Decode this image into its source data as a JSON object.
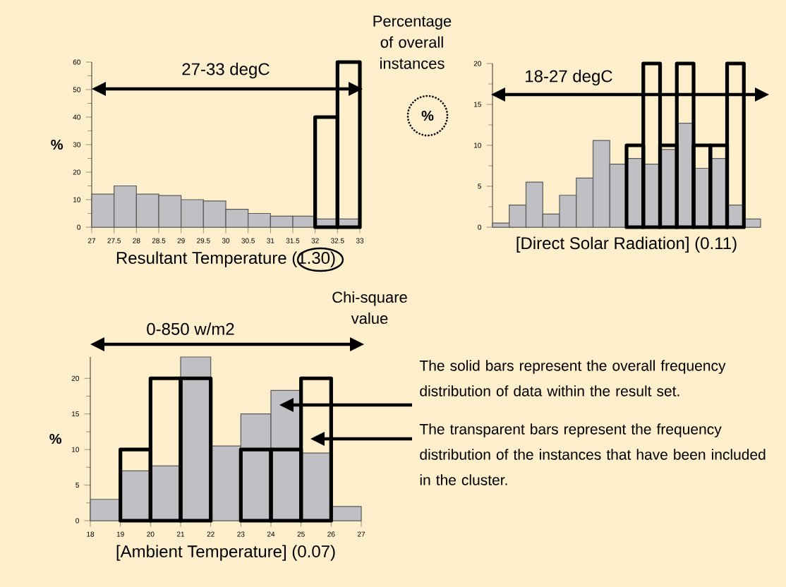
{
  "chart_data": [
    {
      "type": "histogram",
      "xlabel": "Resultant Temperature (1.30)",
      "ylabel": "%",
      "bins": [
        27,
        27.5,
        28,
        28.5,
        29,
        29.5,
        30,
        30.5,
        31,
        31.5,
        32,
        32.5,
        33
      ],
      "xlim": [
        27,
        33
      ],
      "xticks": [
        27,
        27.5,
        28,
        28.5,
        29,
        29.5,
        30,
        30.5,
        31,
        31.5,
        32,
        32.5,
        33
      ],
      "ylim": [
        0,
        60
      ],
      "yticks": [
        0,
        10,
        20,
        30,
        40,
        50,
        60
      ],
      "series": [
        {
          "color": "#c0c0c4",
          "values": [
            12,
            15,
            12,
            11.5,
            10,
            9.5,
            6.5,
            5,
            4,
            4,
            3,
            3
          ]
        },
        {
          "color": "#000000",
          "bins": [
            32,
            32.5,
            33
          ],
          "values": [
            40,
            60
          ]
        }
      ],
      "annotations": [
        "27-33 degC",
        "Percentage of overall instances",
        "%",
        "Chi-square value"
      ]
    },
    {
      "type": "bar",
      "xlabel": "[Direct Solar Radiation] (0.11)",
      "categories": [
        null,
        null,
        null,
        null,
        null,
        null,
        null,
        null,
        null,
        null,
        null,
        null,
        null,
        null,
        null,
        null
      ],
      "ylim": [
        0,
        20
      ],
      "yticks": [
        0,
        5,
        10,
        15,
        20
      ],
      "tick_labels": "y",
      "series": [
        {
          "color": "#c0c0c4",
          "values": [
            0.5,
            2.7,
            5.5,
            1.6,
            3.9,
            6,
            10.6,
            7.7,
            8.4,
            7.7,
            9.5,
            12.7,
            7.2,
            8.4,
            2.7,
            1
          ]
        },
        {
          "color": "#000000",
          "values": [
            null,
            null,
            null,
            null,
            null,
            null,
            null,
            null,
            10,
            20,
            10,
            20,
            10,
            10,
            20,
            null
          ]
        }
      ],
      "annotations": [
        "18-27 degC"
      ]
    },
    {
      "type": "histogram",
      "xlabel": "[Ambient Temperature] (0.07)",
      "ylabel": "%",
      "bins": [
        18,
        19,
        20,
        21,
        22,
        23,
        24,
        25,
        26,
        27
      ],
      "xlim": [
        18,
        27
      ],
      "xticks": [
        18,
        19,
        20,
        21,
        22,
        23,
        24,
        25,
        26,
        27
      ],
      "ylim": [
        0,
        23
      ],
      "yticks": [
        0,
        5,
        10,
        15,
        20
      ],
      "series": [
        {
          "color": "#c0c0c4",
          "values": [
            3,
            7,
            7.7,
            23,
            10.5,
            15,
            18.3,
            9.5,
            2
          ]
        },
        {
          "color": "#000000",
          "bins": [
            19,
            20,
            21,
            22
          ],
          "values": [
            10,
            20,
            20
          ]
        },
        {
          "color": "#000000",
          "bins": [
            23,
            24,
            25,
            26
          ],
          "values": [
            10,
            10,
            20
          ]
        }
      ],
      "annotations": [
        "0-850 w/m2",
        "The solid bars represent the overall frequency distribution of data within the result set.",
        "The transparent bars represent the frequency distribution of the instances that have been included in the cluster."
      ]
    }
  ]
}
